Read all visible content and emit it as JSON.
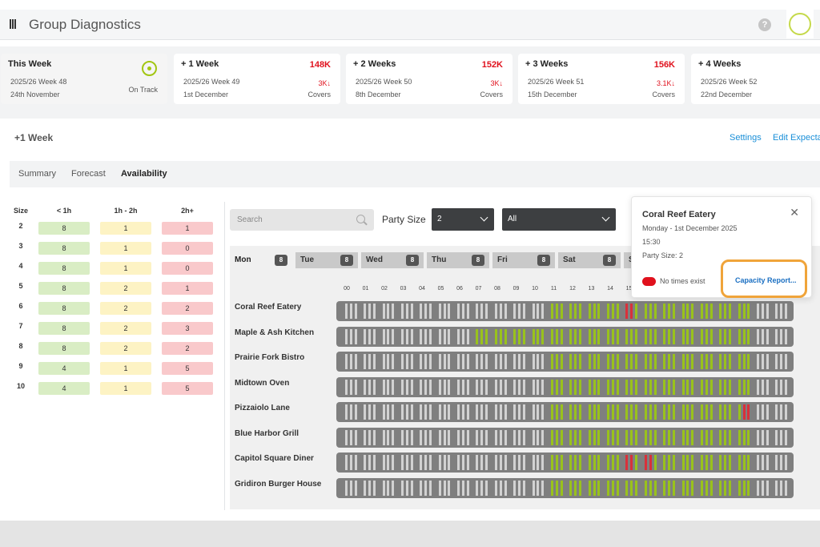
{
  "header": {
    "title": "Group Diagnostics",
    "help_label": "?"
  },
  "weeks": [
    {
      "label": "This Week",
      "week": "2025/26 Week 48",
      "date": "24th November",
      "status": "On Track",
      "value": "",
      "covers": "",
      "covers_label": ""
    },
    {
      "label": "+ 1 Week",
      "week": "2025/26 Week 49",
      "date": "1st December",
      "status": "",
      "value": "148K",
      "covers": "3K↓",
      "covers_label": "Covers"
    },
    {
      "label": "+ 2 Weeks",
      "week": "2025/26 Week 50",
      "date": "8th December",
      "status": "",
      "value": "152K",
      "covers": "3K↓",
      "covers_label": "Covers"
    },
    {
      "label": "+ 3 Weeks",
      "week": "2025/26 Week 51",
      "date": "15th December",
      "status": "",
      "value": "156K",
      "covers": "3.1K↓",
      "covers_label": "Covers"
    },
    {
      "label": "+ 4 Weeks",
      "week": "2025/26 Week 52",
      "date": "22nd December",
      "status": "",
      "value": "",
      "covers": "",
      "covers_label": ""
    }
  ],
  "section": {
    "title": "+1 Week",
    "settings_link": "Settings",
    "edit_link": "Edit Expecta"
  },
  "tabs": [
    "Summary",
    "Forecast",
    "Availability"
  ],
  "active_tab": "Availability",
  "size_table": {
    "headers": [
      "Size",
      "< 1h",
      "1h - 2h",
      "2h+"
    ],
    "rows": [
      {
        "size": "2",
        "lt1h": "8",
        "h1to2": "1",
        "h2plus": "1"
      },
      {
        "size": "3",
        "lt1h": "8",
        "h1to2": "1",
        "h2plus": "0"
      },
      {
        "size": "4",
        "lt1h": "8",
        "h1to2": "1",
        "h2plus": "0"
      },
      {
        "size": "5",
        "lt1h": "8",
        "h1to2": "2",
        "h2plus": "1"
      },
      {
        "size": "6",
        "lt1h": "8",
        "h1to2": "2",
        "h2plus": "2"
      },
      {
        "size": "7",
        "lt1h": "8",
        "h1to2": "2",
        "h2plus": "3"
      },
      {
        "size": "8",
        "lt1h": "8",
        "h1to2": "2",
        "h2plus": "2"
      },
      {
        "size": "9",
        "lt1h": "4",
        "h1to2": "1",
        "h2plus": "5"
      },
      {
        "size": "10",
        "lt1h": "4",
        "h1to2": "1",
        "h2plus": "5"
      }
    ]
  },
  "filters": {
    "search_placeholder": "Search",
    "party_size_label": "Party Size",
    "party_size_value": "2",
    "area_value": "All"
  },
  "days": [
    {
      "label": "Mon",
      "count": "8",
      "active": true
    },
    {
      "label": "Tue",
      "count": "8",
      "active": false
    },
    {
      "label": "Wed",
      "count": "8",
      "active": false
    },
    {
      "label": "Thu",
      "count": "8",
      "active": false
    },
    {
      "label": "Fri",
      "count": "8",
      "active": false
    },
    {
      "label": "Sat",
      "count": "8",
      "active": false
    },
    {
      "label": "S",
      "count": "",
      "active": false
    }
  ],
  "hours": [
    "00",
    "01",
    "02",
    "03",
    "04",
    "05",
    "06",
    "07",
    "08",
    "09",
    "10",
    "11",
    "12",
    "13",
    "14",
    "15"
  ],
  "restaurants": [
    {
      "name": "Coral Reef Eatery",
      "green_from": 11,
      "green_to": 22,
      "red": [
        15
      ]
    },
    {
      "name": "Maple & Ash Kitchen",
      "green_from": 7,
      "green_to": 22,
      "red": []
    },
    {
      "name": "Prairie Fork Bistro",
      "green_from": 11,
      "green_to": 22,
      "red": []
    },
    {
      "name": "Midtown Oven",
      "green_from": 11,
      "green_to": 22,
      "red": []
    },
    {
      "name": "Pizzaiolo Lane",
      "green_from": 11,
      "green_to": 22,
      "red": [
        21.5
      ]
    },
    {
      "name": "Blue Harbor Grill",
      "green_from": 11,
      "green_to": 22,
      "red": []
    },
    {
      "name": "Capitol Square Diner",
      "green_from": 11,
      "green_to": 22,
      "red": [
        15,
        16
      ]
    },
    {
      "name": "Gridiron Burger House",
      "green_from": 11,
      "green_to": 22,
      "red": []
    }
  ],
  "popup": {
    "title": "Coral Reef Eatery",
    "date": "Monday - 1st December 2025",
    "time": "15:30",
    "party": "Party Size: 2",
    "legend": "No times exist",
    "link": "Capacity Report..."
  },
  "colors": {
    "accent": "#1a8fd8",
    "green": "#99c21c",
    "red": "#e0111d",
    "highlight": "#f0a43a"
  }
}
